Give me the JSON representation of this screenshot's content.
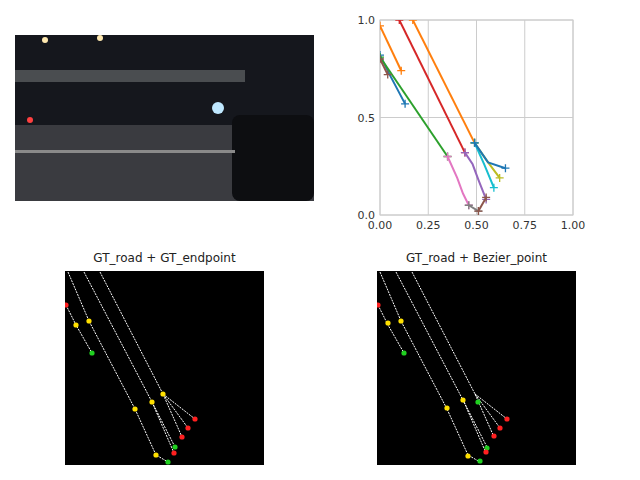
{
  "chart_data": [
    {
      "type": "line",
      "marker": "plus",
      "grid": true,
      "xlim": [
        0,
        1
      ],
      "ylim": [
        0,
        1
      ],
      "xticks": [
        {
          "value": 0,
          "label": "0.00"
        },
        {
          "value": 0.25,
          "label": "0.25"
        },
        {
          "value": 0.5,
          "label": "0.50"
        },
        {
          "value": 0.75,
          "label": "0.75"
        },
        {
          "value": 1,
          "label": "1.00"
        }
      ],
      "yticks": [
        {
          "value": 0,
          "label": "0.0"
        },
        {
          "value": 0.5,
          "label": "0.5"
        },
        {
          "value": 1,
          "label": "1.0"
        }
      ],
      "series": [
        {
          "color": "#1f77b4",
          "x": [
            0.0,
            0.05,
            0.13
          ],
          "values": [
            0.82,
            0.72,
            0.57
          ]
        },
        {
          "color": "#ff7f0e",
          "x": [
            0.0,
            0.11
          ],
          "values": [
            0.97,
            0.74
          ]
        },
        {
          "color": "#ff7f0e",
          "x": [
            0.17,
            0.49
          ],
          "values": [
            1.0,
            0.37
          ]
        },
        {
          "color": "#d62728",
          "x": [
            0.1,
            0.44
          ],
          "values": [
            1.0,
            0.32
          ]
        },
        {
          "color": "#2ca02c",
          "x": [
            0.0,
            0.35
          ],
          "values": [
            0.81,
            0.3
          ]
        },
        {
          "color": "#9467bd",
          "x": [
            0.44,
            0.48,
            0.51,
            0.55
          ],
          "values": [
            0.32,
            0.26,
            0.18,
            0.08
          ]
        },
        {
          "color": "#e377c2",
          "x": [
            0.35,
            0.4,
            0.43,
            0.46
          ],
          "values": [
            0.3,
            0.19,
            0.11,
            0.05
          ]
        },
        {
          "color": "#8c564b",
          "x": [
            0.0,
            0.04
          ],
          "values": [
            0.8,
            0.72
          ]
        },
        {
          "color": "#7f7f7f",
          "x": [
            0.46,
            0.51
          ],
          "values": [
            0.05,
            0.02
          ]
        },
        {
          "color": "#bcbd22",
          "x": [
            0.49,
            0.56,
            0.62
          ],
          "values": [
            0.37,
            0.27,
            0.19
          ]
        },
        {
          "color": "#17becf",
          "x": [
            0.49,
            0.54,
            0.59
          ],
          "values": [
            0.37,
            0.26,
            0.14
          ]
        },
        {
          "color": "#1f77b4",
          "x": [
            0.49,
            0.56,
            0.65
          ],
          "values": [
            0.37,
            0.27,
            0.24
          ]
        },
        {
          "color": "#8c564b",
          "x": [
            0.51,
            0.55
          ],
          "values": [
            0.02,
            0.09
          ]
        }
      ]
    },
    {
      "type": "scatter",
      "title": "GT_road + GT_endpoint",
      "marker": "circle",
      "tick_labels": false,
      "xlim": [
        0,
        199
      ],
      "ylim": [
        194,
        0
      ],
      "series": [
        {
          "type": "line",
          "color": "#ffffff",
          "x": [
            1,
            11,
            27
          ],
          "values": [
            34,
            54,
            82
          ]
        },
        {
          "type": "line",
          "color": "#ffffff",
          "x": [
            3,
            24,
            70,
            91,
            103
          ],
          "values": [
            1,
            50,
            138,
            184,
            191
          ]
        },
        {
          "type": "line",
          "color": "#ffffff",
          "x": [
            19,
            87,
            110
          ],
          "values": [
            1,
            131,
            176
          ]
        },
        {
          "type": "line",
          "color": "#ffffff",
          "x": [
            35,
            98,
            117
          ],
          "values": [
            1,
            123,
            166
          ]
        },
        {
          "type": "line",
          "color": "#ffffff",
          "x": [
            98,
            123
          ],
          "values": [
            123,
            157
          ]
        },
        {
          "type": "line",
          "color": "#ffffff",
          "x": [
            98,
            130
          ],
          "values": [
            123,
            148
          ]
        },
        {
          "type": "line",
          "color": "#ffffff",
          "x": [
            87,
            109
          ],
          "values": [
            131,
            182
          ]
        },
        {
          "type": "scatter",
          "x": [
            1,
            11,
            27,
            24,
            70,
            87,
            98,
            91,
            103,
            110,
            109,
            117,
            123,
            130
          ],
          "values": [
            34,
            54,
            82,
            50,
            138,
            131,
            123,
            184,
            191,
            176,
            182,
            166,
            157,
            148
          ],
          "colors": [
            "#ff2020",
            "#ffe000",
            "#20d020",
            "#ffe000",
            "#ffe000",
            "#ffe000",
            "#ffe000",
            "#ffe000",
            "#20d020",
            "#20d020",
            "#ff2020",
            "#ff2020",
            "#ff2020",
            "#ff2020"
          ]
        }
      ]
    },
    {
      "type": "scatter",
      "title": "GT_road + Bezier_point",
      "marker": "circle",
      "tick_labels": false,
      "xlim": [
        0,
        199
      ],
      "ylim": [
        194,
        0
      ],
      "series": [
        {
          "type": "line",
          "color": "#ffffff",
          "x": [
            1,
            11,
            27
          ],
          "values": [
            34,
            54,
            82
          ]
        },
        {
          "type": "line",
          "color": "#ffffff",
          "x": [
            3,
            24,
            70,
            91,
            103
          ],
          "values": [
            1,
            50,
            138,
            184,
            191
          ]
        },
        {
          "type": "line",
          "color": "#ffffff",
          "x": [
            19,
            87,
            110
          ],
          "values": [
            1,
            131,
            176
          ]
        },
        {
          "type": "line",
          "color": "#ffffff",
          "x": [
            35,
            98,
            117
          ],
          "values": [
            1,
            123,
            166
          ]
        },
        {
          "type": "line",
          "color": "#ffffff",
          "x": [
            98,
            123
          ],
          "values": [
            123,
            157
          ]
        },
        {
          "type": "line",
          "color": "#ffffff",
          "x": [
            98,
            130
          ],
          "values": [
            123,
            148
          ]
        },
        {
          "type": "line",
          "color": "#ffffff",
          "x": [
            87,
            109
          ],
          "values": [
            131,
            182
          ]
        },
        {
          "type": "scatter",
          "x": [
            1,
            11,
            27,
            24,
            70,
            86,
            101,
            91,
            103,
            110,
            109,
            117,
            123,
            130
          ],
          "values": [
            34,
            52,
            82,
            50,
            137,
            129,
            131,
            185,
            190,
            177,
            181,
            165,
            157,
            148
          ],
          "colors": [
            "#ff2020",
            "#ffe000",
            "#20d020",
            "#ffe000",
            "#ffe000",
            "#ffe000",
            "#20d020",
            "#ffe000",
            "#20d020",
            "#20d020",
            "#ff2020",
            "#ff2020",
            "#ff2020",
            "#ff2020"
          ]
        }
      ]
    }
  ]
}
